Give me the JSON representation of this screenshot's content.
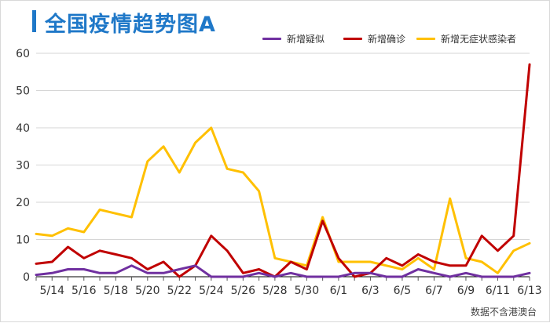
{
  "header": {
    "title": "全国疫情趋势图A"
  },
  "footer": {
    "note": "数据不含港澳台"
  },
  "colors": {
    "title": "#1f78c8",
    "grid": "#d6d6d6",
    "axis": "#000000"
  },
  "chart_data": {
    "type": "line",
    "title": "全国疫情趋势图A",
    "xlabel": "",
    "ylabel": "",
    "ylim": [
      0,
      60
    ],
    "yticks": [
      0,
      10,
      20,
      30,
      40,
      50,
      60
    ],
    "grid": true,
    "legend": "top-right",
    "x": [
      "5/13",
      "5/14",
      "5/15",
      "5/16",
      "5/17",
      "5/18",
      "5/19",
      "5/20",
      "5/21",
      "5/22",
      "5/23",
      "5/24",
      "5/25",
      "5/26",
      "5/27",
      "5/28",
      "5/29",
      "5/30",
      "5/31",
      "6/1",
      "6/2",
      "6/3",
      "6/4",
      "6/5",
      "6/6",
      "6/7",
      "6/8",
      "6/9",
      "6/10",
      "6/11",
      "6/12",
      "6/13"
    ],
    "xtick_labels": [
      "5/14",
      "5/16",
      "5/18",
      "5/20",
      "5/22",
      "5/24",
      "5/26",
      "5/28",
      "5/30",
      "6/1",
      "6/3",
      "6/5",
      "6/7",
      "6/9",
      "6/11",
      "6/13"
    ],
    "series": [
      {
        "name": "新增疑似",
        "color": "#7030a0",
        "values": [
          0.5,
          1,
          2,
          2,
          1,
          1,
          3,
          1,
          1,
          2,
          3,
          0,
          0,
          0,
          1,
          0,
          1,
          0,
          0,
          0,
          1,
          1,
          0,
          0,
          2,
          1,
          0,
          1,
          0,
          0,
          0,
          1
        ]
      },
      {
        "name": "新增确诊",
        "color": "#c00000",
        "values": [
          3.5,
          4,
          8,
          5,
          7,
          6,
          5,
          2,
          4,
          0,
          3,
          11,
          7,
          1,
          2,
          0,
          4,
          2,
          15,
          5,
          0,
          1,
          5,
          3,
          6,
          4,
          3,
          3,
          11,
          7,
          11,
          57
        ]
      },
      {
        "name": "新增无症状感染者",
        "color": "#ffc000",
        "values": [
          11.5,
          11,
          13,
          12,
          18,
          17,
          16,
          31,
          35,
          28,
          36,
          40,
          29,
          28,
          23,
          5,
          4,
          3,
          16,
          4,
          4,
          4,
          3,
          2,
          5,
          2,
          21,
          5,
          4,
          1,
          7,
          9
        ]
      }
    ]
  }
}
